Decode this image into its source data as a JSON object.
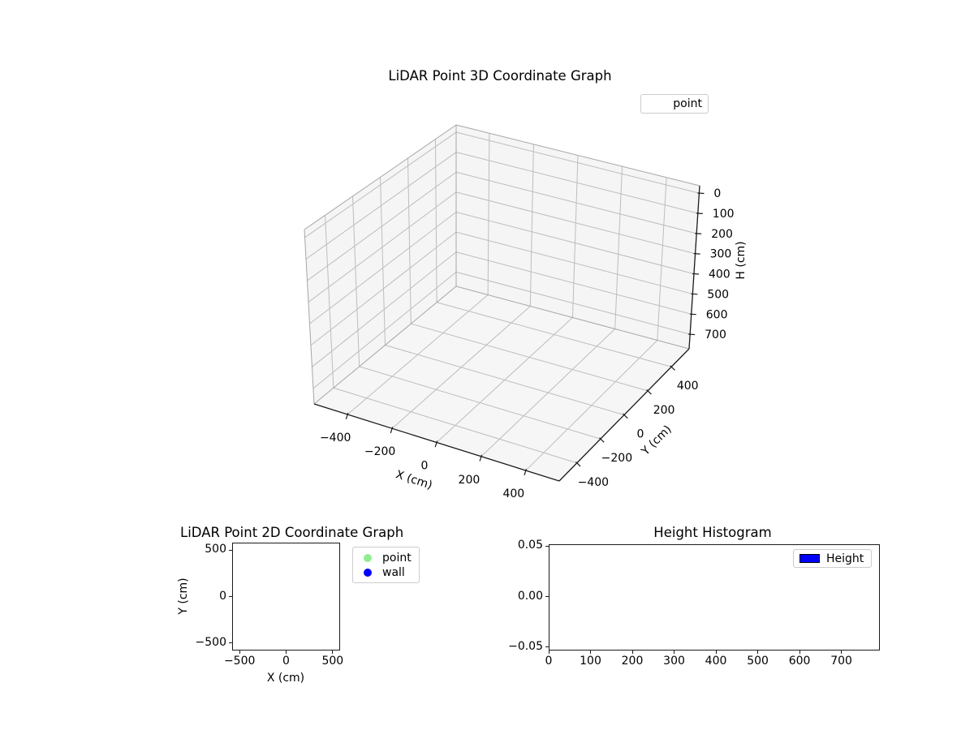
{
  "figure": {
    "background": "#ffffff"
  },
  "plot3d": {
    "title": "LiDAR Point 3D Coordinate Graph",
    "legend": [
      {
        "label": "point"
      }
    ],
    "xaxis": {
      "label": "X (cm)",
      "lim": [
        -550,
        550
      ],
      "ticks": [
        {
          "v": -400,
          "t": "−400"
        },
        {
          "v": -200,
          "t": "−200"
        },
        {
          "v": 0,
          "t": "0"
        },
        {
          "v": 200,
          "t": "200"
        },
        {
          "v": 400,
          "t": "400"
        }
      ]
    },
    "yaxis": {
      "label": "Y (cm)",
      "lim": [
        -550,
        550
      ],
      "ticks": [
        {
          "v": -400,
          "t": "−400"
        },
        {
          "v": -200,
          "t": "−200"
        },
        {
          "v": 0,
          "t": "0"
        },
        {
          "v": 200,
          "t": "200"
        },
        {
          "v": 400,
          "t": "400"
        }
      ]
    },
    "zaxis": {
      "label": "H (cm)",
      "lim": [
        -36.75,
        771.75
      ],
      "inverted": true,
      "ticks": [
        {
          "v": 0,
          "t": "0"
        },
        {
          "v": 100,
          "t": "100"
        },
        {
          "v": 200,
          "t": "200"
        },
        {
          "v": 300,
          "t": "300"
        },
        {
          "v": 400,
          "t": "400"
        },
        {
          "v": 500,
          "t": "500"
        },
        {
          "v": 600,
          "t": "600"
        },
        {
          "v": 700,
          "t": "700"
        }
      ]
    },
    "colors": {
      "pane": "#f5f5f5",
      "floor": "#f6f6f6",
      "grid": "#bdbdbd",
      "pane_edge": "#a6a6a6",
      "axis": "#1a1a1a"
    }
  },
  "plot2d": {
    "title": "LiDAR Point 2D Coordinate Graph",
    "xaxis": {
      "label": "X (cm)",
      "lim": [
        -580,
        580
      ],
      "ticks": [
        {
          "v": -500,
          "t": "−500"
        },
        {
          "v": 0,
          "t": "0"
        },
        {
          "v": 500,
          "t": "500"
        }
      ]
    },
    "yaxis": {
      "label": "Y (cm)",
      "lim": [
        -580,
        580
      ],
      "ticks": [
        {
          "v": 500,
          "t": "500"
        },
        {
          "v": 0,
          "t": "0"
        },
        {
          "v": -500,
          "t": "−500"
        }
      ]
    },
    "legend": [
      {
        "label": "point",
        "color": "#90ee90"
      },
      {
        "label": "wall",
        "color": "#0000ff"
      }
    ]
  },
  "hist": {
    "title": "Height Histogram",
    "xaxis": {
      "lim": [
        0,
        792
      ],
      "ticks": [
        {
          "v": 0,
          "t": "0"
        },
        {
          "v": 100,
          "t": "100"
        },
        {
          "v": 200,
          "t": "200"
        },
        {
          "v": 300,
          "t": "300"
        },
        {
          "v": 400,
          "t": "400"
        },
        {
          "v": 500,
          "t": "500"
        },
        {
          "v": 600,
          "t": "600"
        },
        {
          "v": 700,
          "t": "700"
        }
      ]
    },
    "yaxis": {
      "lim": [
        -0.0533,
        0.0517
      ],
      "ticks": [
        {
          "v": 0.05,
          "t": "0.05"
        },
        {
          "v": 0,
          "t": "0.00"
        },
        {
          "v": -0.05,
          "t": "−0.05"
        }
      ]
    },
    "legend": [
      {
        "label": "Height",
        "color": "#0000ff"
      }
    ]
  },
  "chart_data": [
    {
      "type": "scatter",
      "projection": "3d",
      "title": "LiDAR Point 3D Coordinate Graph",
      "xlabel": "X (cm)",
      "ylabel": "Y (cm)",
      "zlabel": "H (cm)",
      "xticks": [
        -400,
        -200,
        0,
        200,
        400
      ],
      "yticks": [
        -400,
        -200,
        0,
        200,
        400
      ],
      "zticks": [
        0,
        100,
        200,
        300,
        400,
        500,
        600,
        700
      ],
      "xlim": [
        -550,
        550
      ],
      "ylim": [
        -550,
        550
      ],
      "zlim": [
        -36.75,
        771.75
      ],
      "zaxis_inverted": true,
      "grid": true,
      "legend_position": "upper right",
      "series": [
        {
          "name": "point",
          "points": []
        }
      ]
    },
    {
      "type": "scatter",
      "title": "LiDAR Point 2D Coordinate Graph",
      "xlabel": "X (cm)",
      "ylabel": "Y (cm)",
      "xticks": [
        -500,
        0,
        500
      ],
      "yticks": [
        -500,
        0,
        500
      ],
      "xlim": [
        -580,
        580
      ],
      "ylim": [
        -580,
        580
      ],
      "grid": false,
      "legend_position": "outside upper right",
      "series": [
        {
          "name": "point",
          "color": "#90ee90",
          "points": []
        },
        {
          "name": "wall",
          "color": "#0000ff",
          "points": []
        }
      ]
    },
    {
      "type": "bar",
      "title": "Height Histogram",
      "xlabel": "",
      "ylabel": "",
      "xticks": [
        0,
        100,
        200,
        300,
        400,
        500,
        600,
        700
      ],
      "yticks": [
        -0.05,
        0.0,
        0.05
      ],
      "xlim": [
        0,
        792
      ],
      "ylim": [
        -0.0533,
        0.0517
      ],
      "grid": false,
      "legend_position": "upper right",
      "series": [
        {
          "name": "Height",
          "color": "#0000ff",
          "values": []
        }
      ]
    }
  ]
}
